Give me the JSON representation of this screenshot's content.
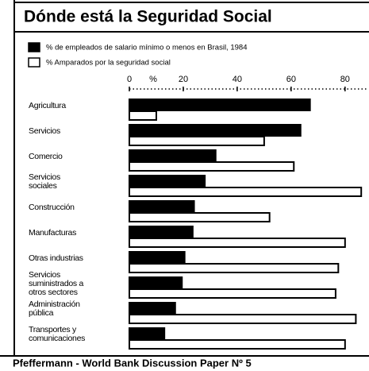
{
  "chart_data": {
    "type": "bar",
    "orientation": "horizontal",
    "title": "Dónde está la Seguridad Social",
    "x_label": "%",
    "categories": [
      "Agricultura",
      "Servicios",
      "Comercio",
      "Servicios\nsociales",
      "Construcción",
      "Manufacturas",
      "Otras industrias",
      "Servicios\nsuministrados a\notros sectores",
      "Administración\npública",
      "Transportes y\ncomunicaciones"
    ],
    "series": [
      {
        "name": "% de empleados de salario mínimo o menos en Brasil, 1984",
        "color": "#000000",
        "values": [
          67,
          63.5,
          32,
          28,
          24,
          23.5,
          20.5,
          19.5,
          17,
          13
        ]
      },
      {
        "name": "% Amparados por la seguridad social",
        "color": "#ffffff",
        "values": [
          10,
          50,
          61,
          86,
          52,
          80,
          77.5,
          76.5,
          84,
          80
        ]
      }
    ],
    "xlim": [
      0,
      88
    ],
    "xticks": [
      0,
      20,
      40,
      60,
      80
    ],
    "source": "Pfeffermann - World Bank Discussion Paper Nº 5"
  }
}
